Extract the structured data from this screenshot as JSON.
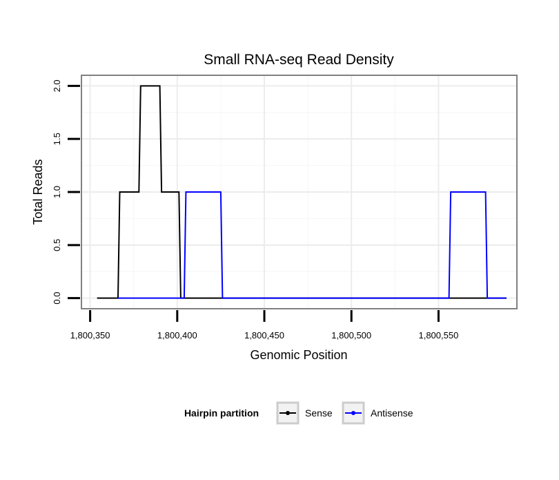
{
  "chart_data": {
    "type": "line",
    "title": "Small RNA-seq Read Density",
    "xlabel": "Genomic Position",
    "ylabel": "Total Reads",
    "xlim": [
      1800345,
      1800595
    ],
    "ylim": [
      -0.1,
      2.1
    ],
    "x_ticks": [
      1800350,
      1800400,
      1800450,
      1800500,
      1800550
    ],
    "x_tick_labels": [
      "1,800,350",
      "1,800,400",
      "1,800,450",
      "1,800,500",
      "1,800,550"
    ],
    "y_ticks": [
      0,
      0.5,
      1,
      1.5,
      2
    ],
    "y_tick_labels": [
      "0.0",
      "0.5",
      "1.0",
      "1.5",
      "2.0"
    ],
    "grid": true,
    "legend": {
      "title": "Hairpin partition",
      "position": "bottom",
      "entries": [
        "Sense",
        "Antisense"
      ]
    },
    "series": [
      {
        "name": "Sense",
        "color": "#000000",
        "x": [
          1800354,
          1800366,
          1800367,
          1800378,
          1800379,
          1800390,
          1800391,
          1800401,
          1800402,
          1800589
        ],
        "y": [
          0,
          0,
          1,
          1,
          2,
          2,
          1,
          1,
          0,
          0
        ]
      },
      {
        "name": "Antisense",
        "color": "#0000ff",
        "x": [
          1800366,
          1800404,
          1800405,
          1800425,
          1800426,
          1800556,
          1800557,
          1800577,
          1800578,
          1800589
        ],
        "y": [
          0,
          0,
          1,
          1,
          0,
          0,
          1,
          1,
          0,
          0
        ]
      }
    ]
  }
}
